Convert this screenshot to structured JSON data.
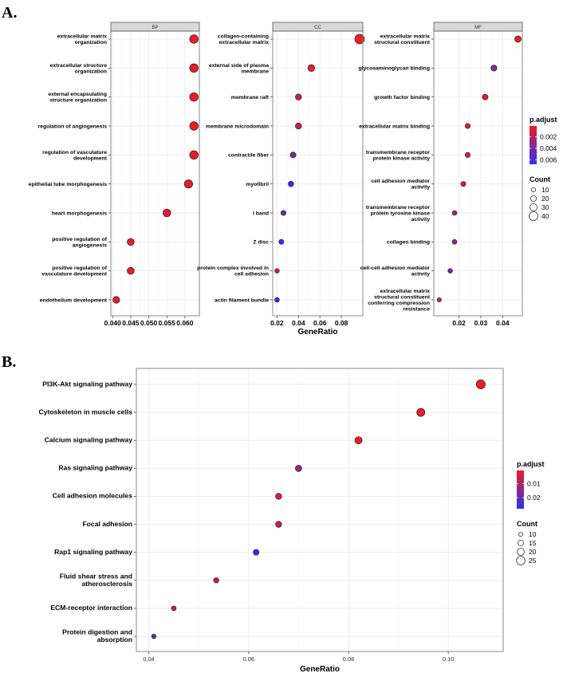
{
  "panel_labels": {
    "a": "A.",
    "b": "B."
  },
  "colors": {
    "high": "#ee1c24",
    "low": "#2a32f5",
    "grid": "#ebebeb",
    "border": "#8a8a8a",
    "strip": "#d9d9d9"
  },
  "chart_data": [
    {
      "type": "scatter",
      "title": "BP",
      "xlabel": "",
      "xlim": [
        0.0395,
        0.064
      ],
      "xticks": [
        0.04,
        0.045,
        0.05,
        0.055,
        0.06
      ],
      "xtick_labels": [
        "0.040",
        "0.045",
        "0.050",
        "0.055",
        "0.060"
      ],
      "points": [
        {
          "label": "extracellular matrix organization",
          "lines": [
            "extracellular matrix",
            "organization"
          ],
          "x": 0.0625,
          "count": 38,
          "padj": 0.0001
        },
        {
          "label": "extracellular structure organization",
          "lines": [
            "extracellular structure",
            "organization"
          ],
          "x": 0.0625,
          "count": 38,
          "padj": 0.0001
        },
        {
          "label": "external encapsulating structure organization",
          "lines": [
            "external encapsulating",
            "structure organization"
          ],
          "x": 0.0625,
          "count": 38,
          "padj": 0.0001
        },
        {
          "label": "regulation of angiogenesis",
          "lines": [
            "regulation of angiogenesis"
          ],
          "x": 0.0625,
          "count": 38,
          "padj": 0.0002
        },
        {
          "label": "regulation of vasculature development",
          "lines": [
            "regulation of vasculature",
            "development"
          ],
          "x": 0.0625,
          "count": 38,
          "padj": 0.0002
        },
        {
          "label": "epithelial tube morphogenesis",
          "lines": [
            "epithelial tube morphogenesis"
          ],
          "x": 0.061,
          "count": 37,
          "padj": 0.0004
        },
        {
          "label": "heart morphogenesis",
          "lines": [
            "heart morphogenesis"
          ],
          "x": 0.055,
          "count": 33,
          "padj": 0.0005
        },
        {
          "label": "positive regulation of angiogenesis",
          "lines": [
            "positive regulation of",
            "angiogenesis"
          ],
          "x": 0.045,
          "count": 27,
          "padj": 0.0003
        },
        {
          "label": "positive regulation of vasculature development",
          "lines": [
            "positive regulation of",
            "vasculature development"
          ],
          "x": 0.045,
          "count": 27,
          "padj": 0.0003
        },
        {
          "label": "endothelium development",
          "lines": [
            "endothelium development"
          ],
          "x": 0.041,
          "count": 25,
          "padj": 0.0006
        }
      ]
    },
    {
      "type": "scatter",
      "title": "CC",
      "xlabel": "GeneRatio",
      "xlim": [
        0.016,
        0.1
      ],
      "xticks": [
        0.02,
        0.04,
        0.06,
        0.08
      ],
      "xtick_labels": [
        "0.02",
        "0.04",
        "0.06",
        "0.08"
      ],
      "points": [
        {
          "label": "collagen-containing extracellular matrix",
          "lines": [
            "collagen-containing",
            "extracellular matrix"
          ],
          "x": 0.097,
          "count": 46,
          "padj": 0.0001
        },
        {
          "label": "external side of plasma membrane",
          "lines": [
            "external side of plasma",
            "membrane"
          ],
          "x": 0.052,
          "count": 26,
          "padj": 0.0003
        },
        {
          "label": "membrane raft",
          "lines": [
            "membrane raft"
          ],
          "x": 0.04,
          "count": 20,
          "padj": 0.0015
        },
        {
          "label": "membrane microdomain",
          "lines": [
            "membrane microdomain"
          ],
          "x": 0.04,
          "count": 20,
          "padj": 0.0016
        },
        {
          "label": "contractile fiber",
          "lines": [
            "contractile fiber"
          ],
          "x": 0.035,
          "count": 17,
          "padj": 0.0042
        },
        {
          "label": "myofibril",
          "lines": [
            "myofibril"
          ],
          "x": 0.033,
          "count": 15,
          "padj": 0.0066
        },
        {
          "label": "I band",
          "lines": [
            "I band"
          ],
          "x": 0.026,
          "count": 12,
          "padj": 0.0045
        },
        {
          "label": "Z disc",
          "lines": [
            "Z disc"
          ],
          "x": 0.024,
          "count": 11,
          "padj": 0.0066
        },
        {
          "label": "protein complex involved in cell adhesion",
          "lines": [
            "protein complex involved in",
            "cell adhesion"
          ],
          "x": 0.02,
          "count": 8,
          "padj": 0.0008
        },
        {
          "label": "actin filament bundle",
          "lines": [
            "actin filament bundle"
          ],
          "x": 0.02,
          "count": 9,
          "padj": 0.0068
        }
      ]
    },
    {
      "type": "scatter",
      "title": "MF",
      "xlabel": "",
      "xlim": [
        0.0085,
        0.049
      ],
      "xticks": [
        0.02,
        0.03,
        0.04
      ],
      "xtick_labels": [
        "0.02",
        "0.03",
        "0.04"
      ],
      "points": [
        {
          "label": "extracellular matrix structural constituent",
          "lines": [
            "extracellular matrix",
            "structural constituent"
          ],
          "x": 0.047,
          "count": 22,
          "padj": 0.0001
        },
        {
          "label": "glycosaminoglycan binding",
          "lines": [
            "glycosaminoglycan binding"
          ],
          "x": 0.036,
          "count": 19,
          "padj": 0.0038
        },
        {
          "label": "growth factor binding",
          "lines": [
            "growth factor binding"
          ],
          "x": 0.032,
          "count": 17,
          "padj": 0.0005
        },
        {
          "label": "extracellular matrix binding",
          "lines": [
            "extracellular matrix binding"
          ],
          "x": 0.024,
          "count": 12,
          "padj": 0.0006
        },
        {
          "label": "transmembrane receptor protein kinase activity",
          "lines": [
            "transmembrane receptor",
            "protein kinase activity"
          ],
          "x": 0.024,
          "count": 12,
          "padj": 0.0007
        },
        {
          "label": "cell adhesion mediator activity",
          "lines": [
            "cell adhesion mediator",
            "activity"
          ],
          "x": 0.022,
          "count": 11,
          "padj": 0.0008
        },
        {
          "label": "transmembrane receptor protein tyrosine kinase activity",
          "lines": [
            "transmembrane receptor",
            "protein tyrosine kinase",
            "activity"
          ],
          "x": 0.018,
          "count": 9,
          "padj": 0.0022
        },
        {
          "label": "collagen binding",
          "lines": [
            "collagen binding"
          ],
          "x": 0.018,
          "count": 9,
          "padj": 0.0034
        },
        {
          "label": "cell-cell adhesion mediator activity",
          "lines": [
            "cell-cell adhesion mediator",
            "activity"
          ],
          "x": 0.016,
          "count": 8,
          "padj": 0.0042
        },
        {
          "label": "extracellular matrix structural constituent conferring compression resistance",
          "lines": [
            "extracellular matrix",
            "structural constituent",
            "conferring compression",
            "resistance"
          ],
          "x": 0.011,
          "count": 5,
          "padj": 0.0012
        }
      ]
    },
    {
      "type": "scatter",
      "title": "",
      "xlabel": "GeneRatio",
      "xlim": [
        0.0375,
        0.111
      ],
      "xticks": [
        0.04,
        0.06,
        0.08,
        0.1
      ],
      "xtick_labels": [
        "0.04",
        "0.06",
        "0.08",
        "0.10"
      ],
      "points": [
        {
          "label": "PI3K-Akt signaling pathway",
          "lines": [
            "PI3K-Akt signaling pathway"
          ],
          "x": 0.1065,
          "count": 25,
          "padj": 0.0005
        },
        {
          "label": "Cytoskeleton in muscle cells",
          "lines": [
            "Cytoskeleton in muscle cells"
          ],
          "x": 0.0945,
          "count": 22,
          "padj": 0.0005
        },
        {
          "label": "Calcium signaling pathway",
          "lines": [
            "Calcium signaling pathway"
          ],
          "x": 0.082,
          "count": 19,
          "padj": 0.0008
        },
        {
          "label": "Ras signaling pathway",
          "lines": [
            "Ras signaling pathway"
          ],
          "x": 0.07,
          "count": 16,
          "padj": 0.013
        },
        {
          "label": "Cell adhesion molecules",
          "lines": [
            "Cell adhesion molecules"
          ],
          "x": 0.066,
          "count": 15,
          "padj": 0.003
        },
        {
          "label": "Focal adhesion",
          "lines": [
            "Focal adhesion"
          ],
          "x": 0.066,
          "count": 15,
          "padj": 0.005
        },
        {
          "label": "Rap1 signaling pathway",
          "lines": [
            "Rap1 signaling pathway"
          ],
          "x": 0.0615,
          "count": 14,
          "padj": 0.027
        },
        {
          "label": "Fluid shear stress and atherosclerosis",
          "lines": [
            "Fluid shear stress and",
            "atherosclerosis"
          ],
          "x": 0.0535,
          "count": 12,
          "padj": 0.008
        },
        {
          "label": "ECM-receptor interaction",
          "lines": [
            "ECM-receptor interaction"
          ],
          "x": 0.045,
          "count": 10,
          "padj": 0.004
        },
        {
          "label": "Protein digestion and absorption",
          "lines": [
            "Protein digestion and",
            "absorption"
          ],
          "x": 0.041,
          "count": 9,
          "padj": 0.018
        }
      ]
    }
  ],
  "legend_a": {
    "color_title": "p.adjust",
    "color_range": [
      0.0001,
      0.0068
    ],
    "color_ticks": [
      0.002,
      0.004,
      0.006
    ],
    "color_tick_labels": [
      "0.002",
      "0.004",
      "0.006"
    ],
    "size_title": "Count",
    "size_values": [
      10,
      20,
      30,
      40
    ],
    "size_labels": [
      "10",
      "20",
      "30",
      "40"
    ]
  },
  "legend_b": {
    "color_title": "p.adjust",
    "color_range": [
      0.0005,
      0.028
    ],
    "color_ticks": [
      0.01,
      0.02
    ],
    "color_tick_labels": [
      "0.01",
      "0.02"
    ],
    "size_title": "Count",
    "size_values": [
      10,
      15,
      20,
      25
    ],
    "size_labels": [
      "10",
      "15",
      "20",
      "25"
    ]
  }
}
